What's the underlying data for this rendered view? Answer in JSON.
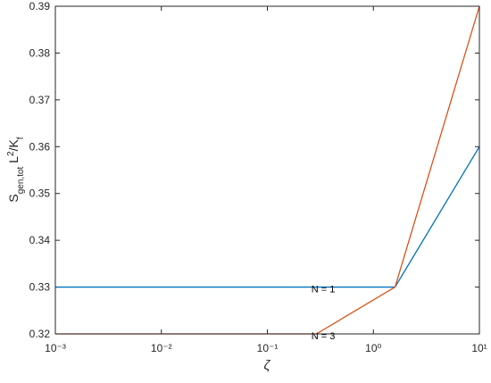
{
  "chart_data": {
    "type": "line",
    "xlabel": "ζ",
    "ylabel_parts": [
      {
        "text": "S",
        "pos": "base"
      },
      {
        "text": "gen,tot",
        "pos": "sub"
      },
      {
        "text": " L",
        "pos": "base"
      },
      {
        "text": "2",
        "pos": "sup"
      },
      {
        "text": "/K",
        "pos": "base"
      },
      {
        "text": "f",
        "pos": "sub"
      }
    ],
    "x_scale": "log",
    "xlim": [
      0.001,
      10
    ],
    "xticks": [
      {
        "value": 0.001,
        "label": "10⁻³"
      },
      {
        "value": 0.01,
        "label": "10⁻²"
      },
      {
        "value": 0.1,
        "label": "10⁻¹"
      },
      {
        "value": 1,
        "label": "10⁰"
      },
      {
        "value": 10,
        "label": "10¹"
      }
    ],
    "ylim": [
      0.32,
      0.39
    ],
    "yticks": [
      0.32,
      0.33,
      0.34,
      0.35,
      0.36,
      0.37,
      0.38,
      0.39
    ],
    "series": [
      {
        "name": "N = 1",
        "color": "#0072BD",
        "x": [
          0.001,
          1.6,
          10
        ],
        "values": [
          0.33,
          0.33,
          0.36
        ]
      },
      {
        "name": "N = 3",
        "color": "#D95319",
        "x": [
          0.001,
          0.29,
          1.6,
          10
        ],
        "values": [
          0.32,
          0.32,
          0.33,
          0.39
        ]
      }
    ],
    "annotations": [
      {
        "text": "N = 1",
        "x": 0.25,
        "y": 0.33
      },
      {
        "text": "N = 3",
        "x": 0.25,
        "y": 0.32
      }
    ]
  }
}
